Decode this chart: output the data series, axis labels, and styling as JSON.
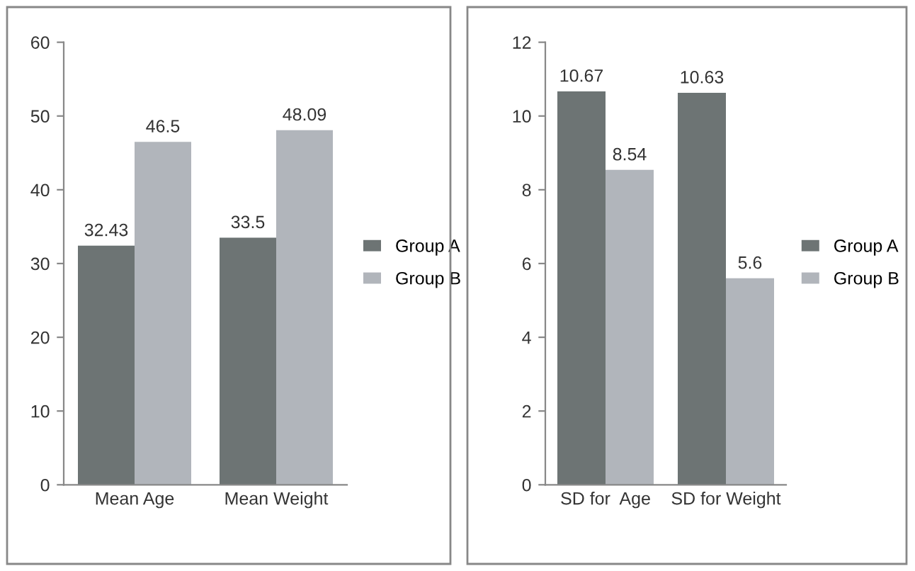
{
  "chart_data": [
    {
      "type": "bar",
      "categories": [
        "Mean Age",
        "Mean Weight"
      ],
      "series": [
        {
          "name": "Group A",
          "color": "#6d7474",
          "values": [
            32.43,
            33.5
          ]
        },
        {
          "name": "Group B",
          "color": "#b1b5bb",
          "values": [
            46.5,
            48.09
          ]
        }
      ],
      "ylim": [
        0,
        60
      ],
      "yticks": [
        0,
        10,
        20,
        30,
        40,
        50,
        60
      ],
      "data_labels": true,
      "legend": "right",
      "grid": false
    },
    {
      "type": "bar",
      "categories": [
        "SD for  Age",
        "SD for Weight"
      ],
      "series": [
        {
          "name": "Group A",
          "color": "#6d7474",
          "values": [
            10.67,
            10.63
          ]
        },
        {
          "name": "Group B",
          "color": "#b1b5bb",
          "values": [
            8.54,
            5.6
          ]
        }
      ],
      "ylim": [
        0,
        12
      ],
      "yticks": [
        0,
        2,
        4,
        6,
        8,
        10,
        12
      ],
      "data_labels": true,
      "legend": "right",
      "grid": false
    }
  ]
}
